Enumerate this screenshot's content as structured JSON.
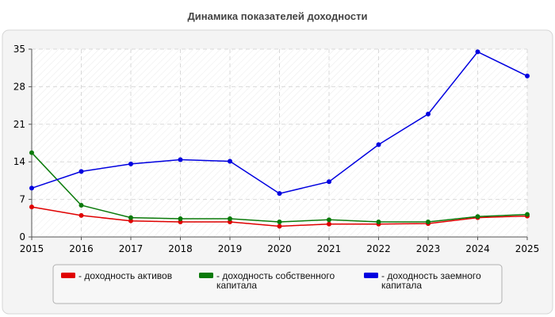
{
  "chart_data": {
    "type": "line",
    "title": "Динамика показателей доходности",
    "xlabel": "",
    "ylabel": "",
    "categories": [
      "2015",
      "2016",
      "2017",
      "2018",
      "2019",
      "2020",
      "2021",
      "2022",
      "2023",
      "2024",
      "2025"
    ],
    "ylim": [
      0,
      35
    ],
    "yticks": [
      0,
      7,
      14,
      21,
      28,
      35
    ],
    "grid": true,
    "legend_position": "bottom",
    "series": [
      {
        "name_lines": [
          "- доходность активов"
        ],
        "color": "#e00000",
        "values": [
          5.6,
          4.0,
          3.0,
          2.8,
          2.8,
          2.0,
          2.4,
          2.4,
          2.5,
          3.6,
          3.9
        ]
      },
      {
        "name_lines": [
          "- доходность собственного",
          "капитала"
        ],
        "color": "#0a7a0a",
        "values": [
          15.7,
          5.9,
          3.6,
          3.4,
          3.4,
          2.8,
          3.2,
          2.8,
          2.8,
          3.8,
          4.2
        ]
      },
      {
        "name_lines": [
          "- доходность заемного",
          "капитала"
        ],
        "color": "#0000e0",
        "values": [
          9.1,
          12.2,
          13.6,
          14.4,
          14.1,
          8.1,
          10.3,
          17.2,
          22.9,
          34.5,
          30.0
        ]
      }
    ]
  }
}
